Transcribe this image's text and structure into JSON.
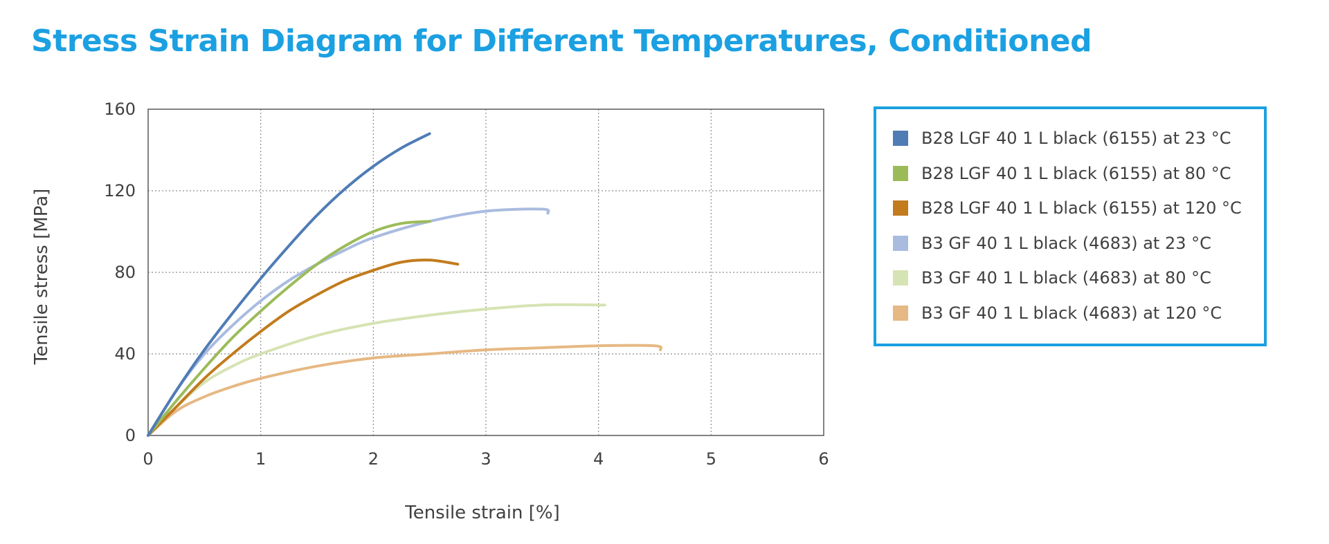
{
  "title": "Stress Strain Diagram for Different Temperatures, Conditioned",
  "chart_data": {
    "type": "line",
    "title": "Stress Strain Diagram for Different Temperatures, Conditioned",
    "xlabel": "Tensile strain [%]",
    "ylabel": "Tensile stress [MPa]",
    "xlim": [
      0,
      6
    ],
    "ylim": [
      0,
      160
    ],
    "xticks": [
      0,
      1,
      2,
      3,
      4,
      5,
      6
    ],
    "yticks": [
      0,
      40,
      80,
      120,
      160
    ],
    "grid": "dotted",
    "legend_position": "right",
    "series": [
      {
        "name": "B28 LGF 40 1 L black (6155) at 23 °C",
        "color": "#4f7cb5",
        "x": [
          0,
          0.25,
          0.5,
          0.75,
          1.0,
          1.25,
          1.5,
          1.75,
          2.0,
          2.25,
          2.5
        ],
        "y": [
          0,
          22,
          42,
          60,
          77,
          93,
          108,
          121,
          132,
          141,
          148
        ]
      },
      {
        "name": "B28 LGF 40 1 L black (6155) at 80 °C",
        "color": "#9bbb59",
        "x": [
          0,
          0.25,
          0.5,
          0.75,
          1.0,
          1.25,
          1.5,
          1.75,
          2.0,
          2.25,
          2.5
        ],
        "y": [
          0,
          17,
          33,
          48,
          61,
          73,
          84,
          93,
          100,
          104,
          105
        ]
      },
      {
        "name": "B28 LGF 40 1 L black (6155) at 120 °C",
        "color": "#c27b1d",
        "x": [
          0,
          0.25,
          0.5,
          0.75,
          1.0,
          1.25,
          1.5,
          1.75,
          2.0,
          2.25,
          2.5,
          2.75
        ],
        "y": [
          0,
          14,
          28,
          40,
          51,
          61,
          69,
          76,
          81,
          85,
          86,
          84
        ]
      },
      {
        "name": "B3 GF 40 1 L black (4683) at 23 °C",
        "color": "#a9bbdf",
        "x": [
          0,
          0.25,
          0.5,
          0.75,
          1.0,
          1.25,
          1.5,
          1.75,
          2.0,
          2.5,
          3.0,
          3.5,
          3.55
        ],
        "y": [
          0,
          22,
          40,
          54,
          66,
          76,
          84,
          91,
          97,
          105,
          110,
          111,
          109
        ]
      },
      {
        "name": "B3 GF 40 1 L black (4683) at 80 °C",
        "color": "#d6e3b3",
        "x": [
          0,
          0.25,
          0.5,
          0.75,
          1.0,
          1.5,
          2.0,
          2.5,
          3.0,
          3.5,
          4.0,
          4.05
        ],
        "y": [
          0,
          14,
          26,
          34,
          40,
          49,
          55,
          59,
          62,
          64,
          64,
          64
        ]
      },
      {
        "name": "B3 GF 40 1 L black (4683) at 120 °C",
        "color": "#e6b883",
        "x": [
          0,
          0.25,
          0.5,
          0.75,
          1.0,
          1.5,
          2.0,
          2.5,
          3.0,
          3.5,
          4.0,
          4.5,
          4.55
        ],
        "y": [
          0,
          12,
          19,
          24,
          28,
          34,
          38,
          40,
          42,
          43,
          44,
          44,
          42
        ]
      }
    ]
  }
}
